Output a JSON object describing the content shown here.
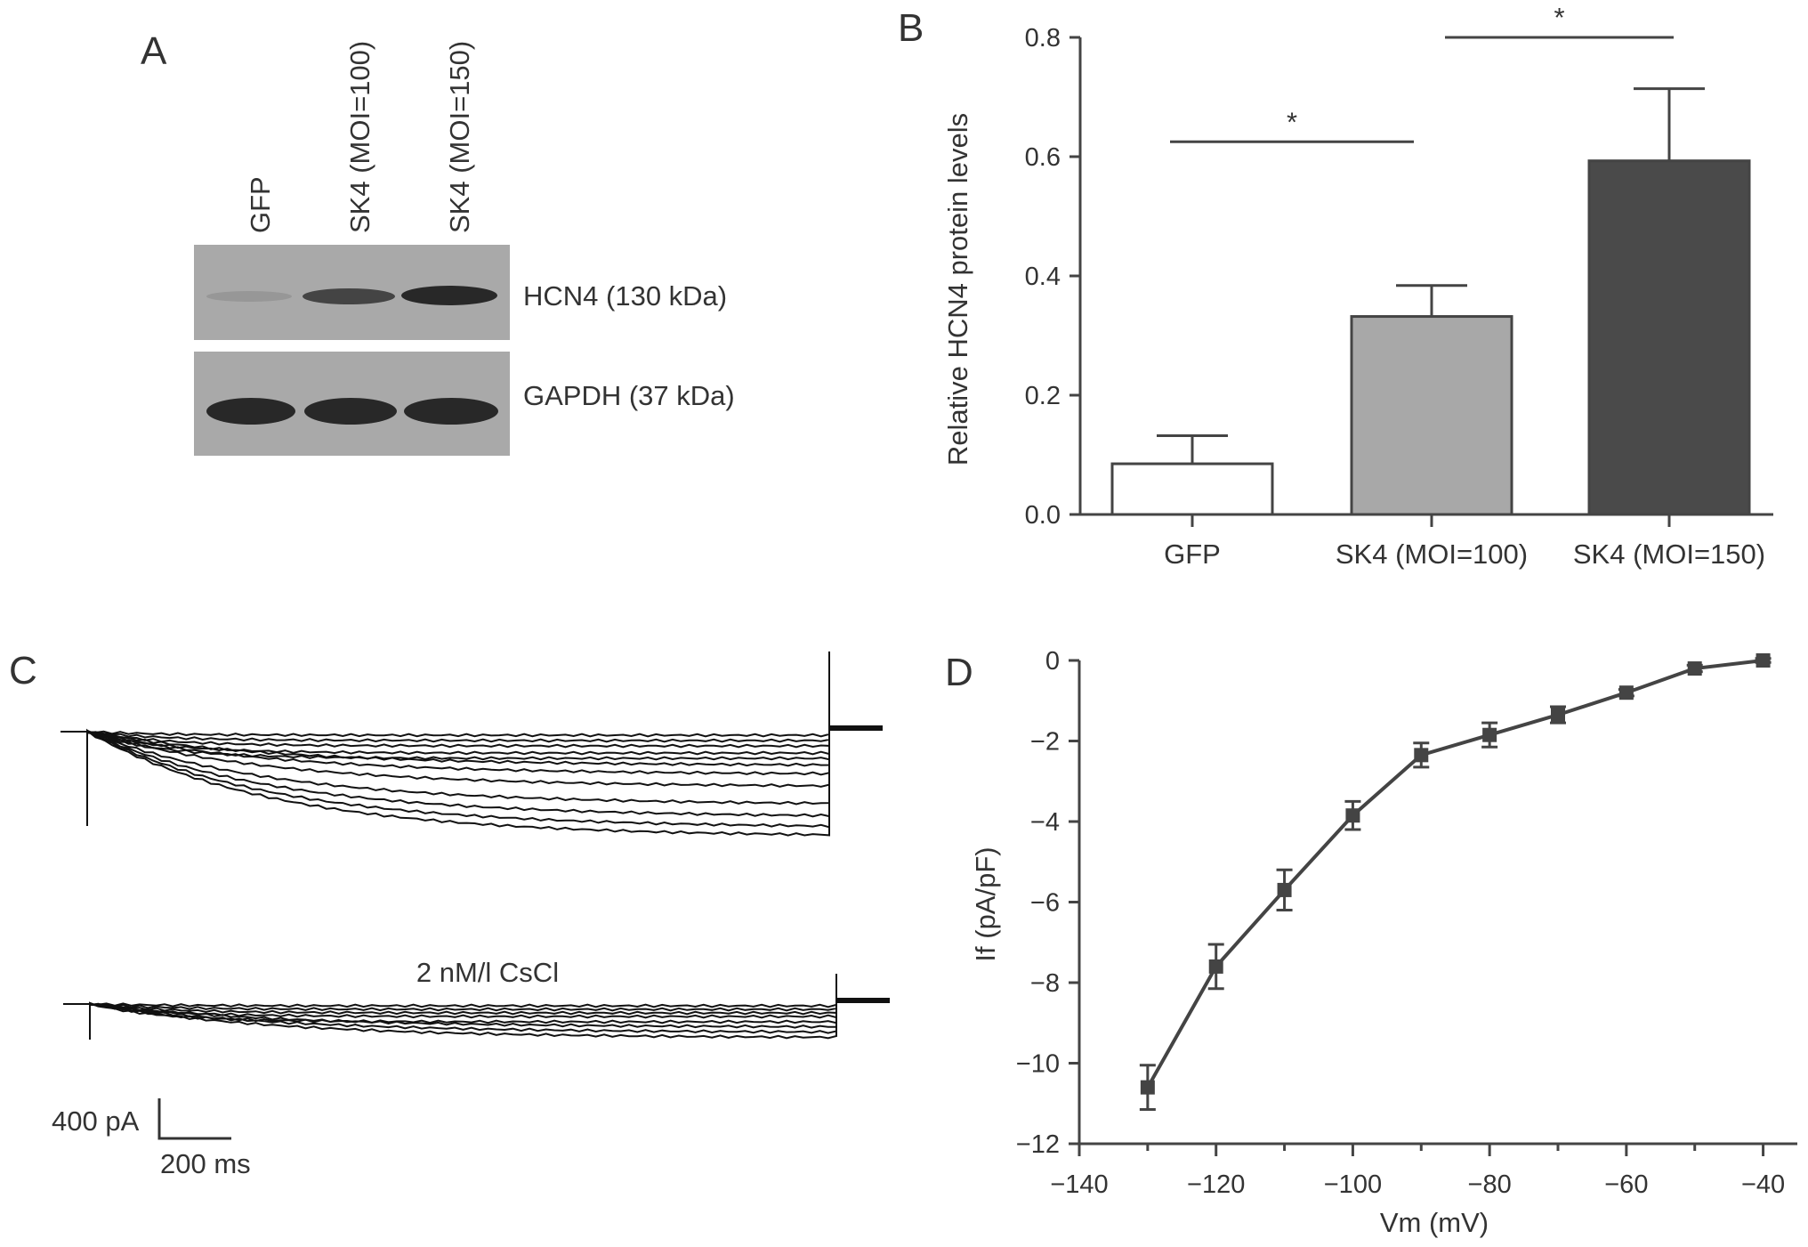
{
  "panels": {
    "A": {
      "letter": "A",
      "lanes": [
        "GFP",
        "SK4 (MOI=100)",
        "SK4 (MOI=150)"
      ],
      "bands": [
        {
          "label": "HCN4 (130 kDa)",
          "intensity": [
            0.12,
            0.7,
            0.9
          ]
        },
        {
          "label": "GAPDH (37 kDa)",
          "intensity": [
            0.9,
            0.9,
            0.9
          ]
        }
      ]
    },
    "B": {
      "letter": "B"
    },
    "C": {
      "letter": "C",
      "treatment_label": "2 nM/l CsCl",
      "scale_current": "400 pA",
      "scale_time": "200 ms"
    },
    "D": {
      "letter": "D"
    }
  },
  "chart_data": [
    {
      "panel": "B",
      "type": "bar",
      "categories": [
        "GFP",
        "SK4 (MOI=100)",
        "SK4 (MOI=150)"
      ],
      "values": [
        0.085,
        0.332,
        0.593
      ],
      "errors": [
        0.047,
        0.052,
        0.121
      ],
      "colors": [
        "#ffffff",
        "#a8a8a8",
        "#4a4a4a"
      ],
      "ylabel": "Relative HCN4 protein levels",
      "xlabel": "",
      "ylim": [
        0,
        0.8
      ],
      "yticks": [
        "0.0",
        "0.2",
        "0.4",
        "0.6",
        "0.8"
      ],
      "significance": [
        {
          "from": 0,
          "to": 1,
          "y": 0.625,
          "label": "*"
        },
        {
          "from": 1,
          "to": 2,
          "y": 0.8,
          "label": "*"
        }
      ]
    },
    {
      "panel": "D",
      "type": "line",
      "x": [
        -130,
        -120,
        -110,
        -100,
        -90,
        -80,
        -70,
        -60,
        -50,
        -40
      ],
      "y": [
        -10.6,
        -7.6,
        -5.7,
        -3.85,
        -2.35,
        -1.85,
        -1.35,
        -0.8,
        -0.2,
        0
      ],
      "errors": [
        0.55,
        0.55,
        0.5,
        0.35,
        0.3,
        0.3,
        0.2,
        0.08,
        0.08,
        0.05
      ],
      "xlabel": "Vm (mV)",
      "ylabel": "If (pA/pF)",
      "xlim": [
        -140,
        -35
      ],
      "ylim": [
        -12,
        0
      ],
      "xticks": [
        "−140",
        "−120",
        "−100",
        "−80",
        "−60",
        "−40"
      ],
      "yticks": [
        "−12",
        "−10",
        "−8",
        "−6",
        "−4",
        "−2",
        "0"
      ]
    }
  ]
}
